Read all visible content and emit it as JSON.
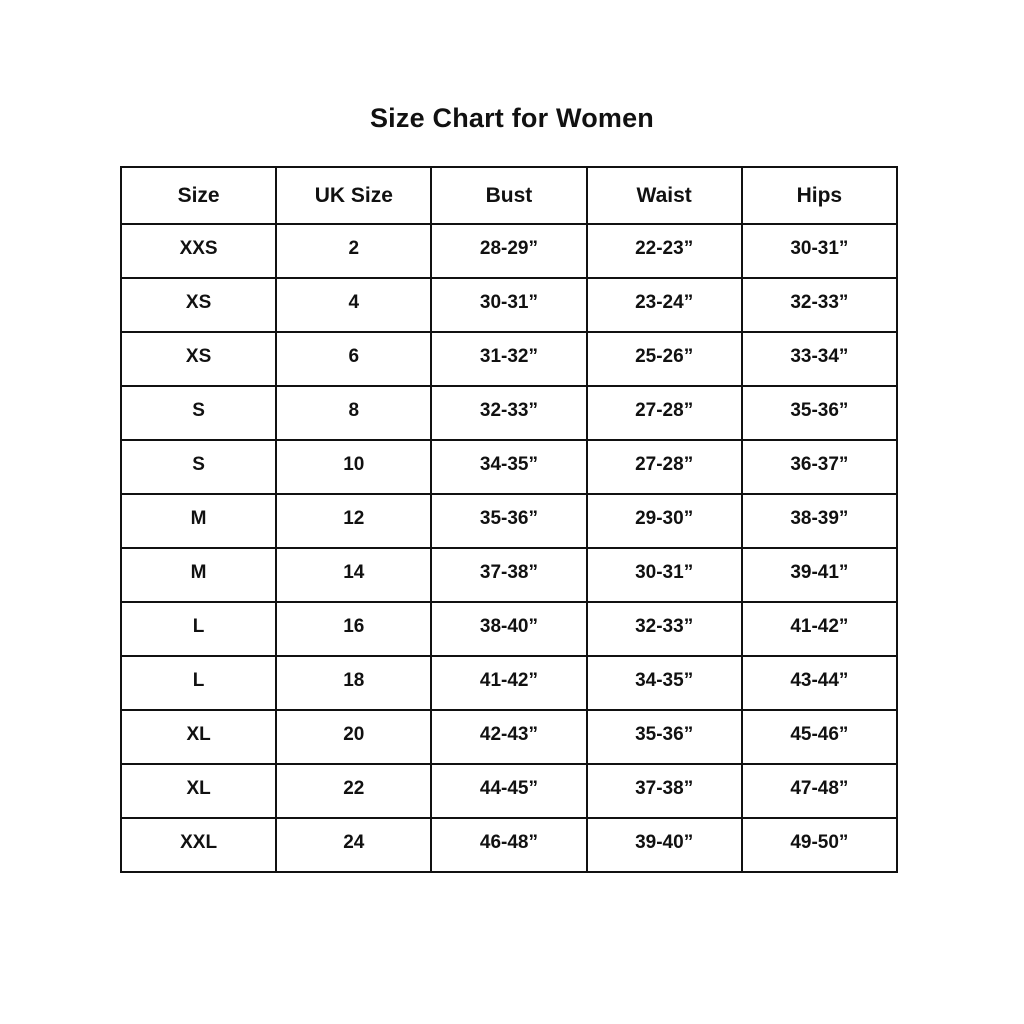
{
  "page": {
    "title": "Size Chart for Women"
  },
  "table": {
    "columns": [
      "Size",
      "UK Size",
      "Bust",
      "Waist",
      "Hips"
    ],
    "rows": [
      [
        "XXS",
        "2",
        "28-29”",
        "22-23”",
        "30-31”"
      ],
      [
        "XS",
        "4",
        "30-31”",
        "23-24”",
        "32-33”"
      ],
      [
        "XS",
        "6",
        "31-32”",
        "25-26”",
        "33-34”"
      ],
      [
        "S",
        "8",
        "32-33”",
        "27-28”",
        "35-36”"
      ],
      [
        "S",
        "10",
        "34-35”",
        "27-28”",
        "36-37”"
      ],
      [
        "M",
        "12",
        "35-36”",
        "29-30”",
        "38-39”"
      ],
      [
        "M",
        "14",
        "37-38”",
        "30-31”",
        "39-41”"
      ],
      [
        "L",
        "16",
        "38-40”",
        "32-33”",
        "41-42”"
      ],
      [
        "L",
        "18",
        "41-42”",
        "34-35”",
        "43-44”"
      ],
      [
        "XL",
        "20",
        "42-43”",
        "35-36”",
        "45-46”"
      ],
      [
        "XL",
        "22",
        "44-45”",
        "37-38”",
        "47-48”"
      ],
      [
        "XXL",
        "24",
        "46-48”",
        "39-40”",
        "49-50”"
      ]
    ]
  },
  "colors": {
    "text": "#111111",
    "border": "#111111",
    "background": "#ffffff"
  }
}
